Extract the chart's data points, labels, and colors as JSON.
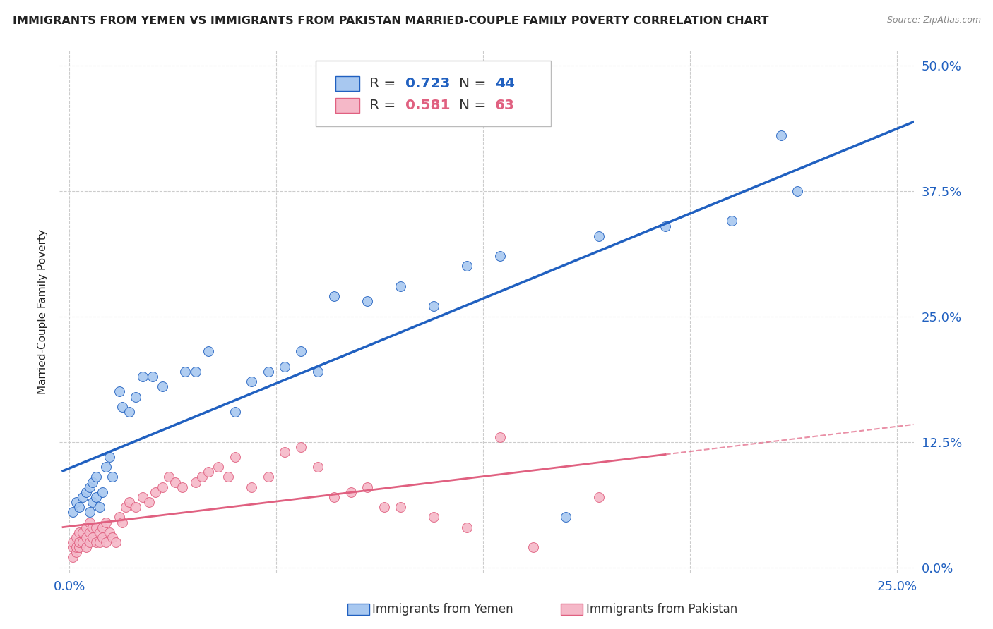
{
  "title": "IMMIGRANTS FROM YEMEN VS IMMIGRANTS FROM PAKISTAN MARRIED-COUPLE FAMILY POVERTY CORRELATION CHART",
  "source": "Source: ZipAtlas.com",
  "ylabel_label": "Married-Couple Family Poverty",
  "legend_label1": "Immigrants from Yemen",
  "legend_label2": "Immigrants from Pakistan",
  "R_yemen": 0.723,
  "N_yemen": 44,
  "R_pakistan": 0.581,
  "N_pakistan": 63,
  "color_yemen": "#a8c8f0",
  "color_pakistan": "#f5b8c8",
  "line_color_yemen": "#2060c0",
  "line_color_pakistan": "#e06080",
  "background_color": "#ffffff",
  "grid_color": "#cccccc",
  "title_color": "#222222",
  "axis_label_color": "#2060c0",
  "xlim": [
    0.0,
    0.25
  ],
  "ylim": [
    0.0,
    0.5
  ],
  "x_ticks": [
    0.0,
    0.25
  ],
  "y_ticks": [
    0.0,
    0.125,
    0.25,
    0.375,
    0.5
  ],
  "y_tick_labels": [
    "0.0%",
    "12.5%",
    "25.0%",
    "37.5%",
    "50.0%"
  ],
  "x_tick_labels": [
    "0.0%",
    "25.0%"
  ],
  "yemen_x": [
    0.001,
    0.002,
    0.003,
    0.004,
    0.005,
    0.006,
    0.006,
    0.007,
    0.007,
    0.008,
    0.008,
    0.009,
    0.01,
    0.011,
    0.012,
    0.013,
    0.015,
    0.016,
    0.018,
    0.02,
    0.022,
    0.025,
    0.028,
    0.035,
    0.038,
    0.042,
    0.05,
    0.055,
    0.06,
    0.065,
    0.07,
    0.075,
    0.08,
    0.09,
    0.1,
    0.11,
    0.12,
    0.13,
    0.15,
    0.16,
    0.18,
    0.2,
    0.215,
    0.22
  ],
  "yemen_y": [
    0.055,
    0.065,
    0.06,
    0.07,
    0.075,
    0.055,
    0.08,
    0.065,
    0.085,
    0.07,
    0.09,
    0.06,
    0.075,
    0.1,
    0.11,
    0.09,
    0.175,
    0.16,
    0.155,
    0.17,
    0.19,
    0.19,
    0.18,
    0.195,
    0.195,
    0.215,
    0.155,
    0.185,
    0.195,
    0.2,
    0.215,
    0.195,
    0.27,
    0.265,
    0.28,
    0.26,
    0.3,
    0.31,
    0.05,
    0.33,
    0.34,
    0.345,
    0.43,
    0.375
  ],
  "pakistan_x": [
    0.001,
    0.001,
    0.001,
    0.002,
    0.002,
    0.002,
    0.003,
    0.003,
    0.003,
    0.004,
    0.004,
    0.005,
    0.005,
    0.005,
    0.006,
    0.006,
    0.006,
    0.007,
    0.007,
    0.008,
    0.008,
    0.009,
    0.009,
    0.01,
    0.01,
    0.011,
    0.011,
    0.012,
    0.013,
    0.014,
    0.015,
    0.016,
    0.017,
    0.018,
    0.02,
    0.022,
    0.024,
    0.026,
    0.028,
    0.03,
    0.032,
    0.034,
    0.038,
    0.04,
    0.042,
    0.045,
    0.048,
    0.05,
    0.055,
    0.06,
    0.065,
    0.07,
    0.075,
    0.08,
    0.085,
    0.09,
    0.095,
    0.1,
    0.11,
    0.12,
    0.13,
    0.14,
    0.16
  ],
  "pakistan_y": [
    0.01,
    0.02,
    0.025,
    0.015,
    0.02,
    0.03,
    0.02,
    0.025,
    0.035,
    0.025,
    0.035,
    0.02,
    0.03,
    0.04,
    0.025,
    0.035,
    0.045,
    0.03,
    0.04,
    0.025,
    0.04,
    0.025,
    0.035,
    0.03,
    0.04,
    0.025,
    0.045,
    0.035,
    0.03,
    0.025,
    0.05,
    0.045,
    0.06,
    0.065,
    0.06,
    0.07,
    0.065,
    0.075,
    0.08,
    0.09,
    0.085,
    0.08,
    0.085,
    0.09,
    0.095,
    0.1,
    0.09,
    0.11,
    0.08,
    0.09,
    0.115,
    0.12,
    0.1,
    0.07,
    0.075,
    0.08,
    0.06,
    0.06,
    0.05,
    0.04,
    0.13,
    0.02,
    0.07
  ]
}
